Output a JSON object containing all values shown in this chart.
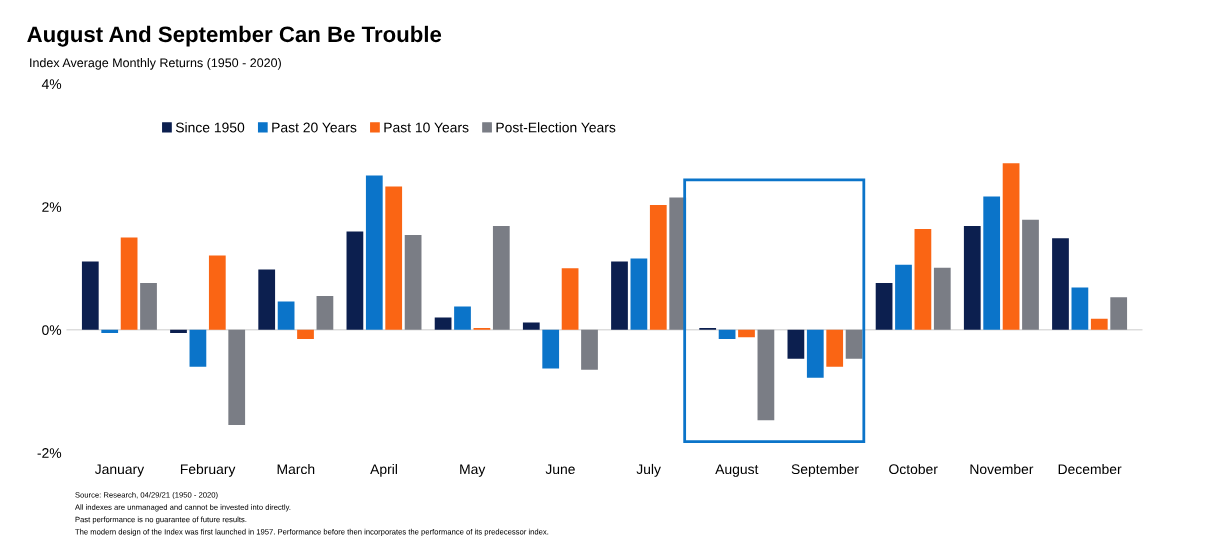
{
  "chart_data": {
    "type": "bar",
    "title": "August And September Can Be Trouble",
    "subtitle": "Index Average Monthly Returns (1950 - 2020)",
    "categories": [
      "January",
      "February",
      "March",
      "April",
      "May",
      "June",
      "July",
      "August",
      "September",
      "October",
      "November",
      "December"
    ],
    "series": [
      {
        "name": "Since 1950",
        "color": "#0c1f4f",
        "values": [
          1.11,
          -0.05,
          0.98,
          1.6,
          0.2,
          0.12,
          1.11,
          0.03,
          -0.47,
          0.76,
          1.69,
          1.49
        ]
      },
      {
        "name": "Past 20 Years",
        "color": "#0b74c9",
        "values": [
          -0.05,
          -0.6,
          0.46,
          2.51,
          0.38,
          -0.63,
          1.16,
          -0.15,
          -0.78,
          1.06,
          2.17,
          0.69
        ]
      },
      {
        "name": "Past 10 Years",
        "color": "#fa6514",
        "values": [
          1.5,
          1.21,
          -0.15,
          2.33,
          0.03,
          1.0,
          2.03,
          -0.12,
          -0.6,
          1.64,
          2.71,
          0.18
        ]
      },
      {
        "name": "Post-Election Years",
        "color": "#7a7d85",
        "values": [
          0.76,
          -1.55,
          0.55,
          1.54,
          1.69,
          -0.65,
          2.15,
          -1.47,
          -0.47,
          1.01,
          1.79,
          0.53
        ]
      }
    ],
    "ylim": [
      -2,
      4
    ],
    "yticks": [
      {
        "value": -2,
        "label": "-2%"
      },
      {
        "value": 0,
        "label": "0%"
      },
      {
        "value": 2,
        "label": "2%"
      },
      {
        "value": 4,
        "label": "4%"
      }
    ],
    "ref_lines": [
      {
        "axis": "y",
        "value": 0,
        "color": "#dddddd"
      }
    ],
    "grid": false,
    "legend": "top",
    "annotations": [
      "Source: Research, 04/29/21 (1950 - 2020)",
      "All indexes are unmanaged and cannot be invested into directly.",
      "Past performance is no guarantee of future results.",
      "The modern design of the Index was first launched in 1957. Performance before then incorporates the performance of its predecessor index."
    ]
  }
}
